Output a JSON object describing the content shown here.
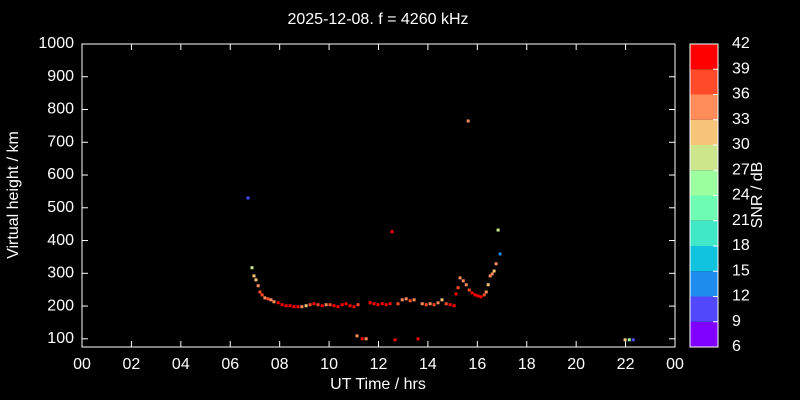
{
  "chart_data": {
    "type": "scatter",
    "title": "2025-12-08. f = 4260 kHz",
    "x_label": "UT Time / hrs",
    "y_label": "Virtual height / km",
    "xlim": [
      0,
      24
    ],
    "xticks": [
      {
        "value": 0,
        "label": "00"
      },
      {
        "value": 2,
        "label": "02"
      },
      {
        "value": 4,
        "label": "04"
      },
      {
        "value": 6,
        "label": "06"
      },
      {
        "value": 8,
        "label": "08"
      },
      10,
      12,
      14,
      16,
      18,
      20,
      22,
      {
        "value": 24,
        "label": "00"
      }
    ],
    "ylim": [
      75,
      1000
    ],
    "yticks": [
      100,
      200,
      300,
      400,
      500,
      600,
      700,
      800,
      900,
      1000
    ],
    "grid": false,
    "x": [
      6.72,
      6.88,
      6.96,
      7.04,
      7.13,
      7.2,
      7.29,
      7.4,
      7.53,
      7.65,
      7.77,
      7.94,
      8.1,
      8.26,
      8.42,
      8.58,
      8.74,
      8.9,
      9.07,
      9.23,
      9.39,
      9.55,
      9.72,
      9.88,
      10.04,
      10.2,
      10.36,
      10.53,
      10.69,
      10.85,
      11.01,
      11.17,
      11.13,
      11.34,
      11.5,
      11.66,
      11.82,
      11.98,
      12.15,
      12.31,
      12.47,
      12.55,
      12.67,
      12.79,
      12.96,
      13.12,
      13.28,
      13.44,
      13.6,
      13.77,
      13.93,
      14.09,
      14.25,
      14.41,
      14.57,
      14.74,
      14.9,
      15.06,
      15.14,
      15.22,
      15.3,
      15.43,
      15.55,
      15.63,
      15.67,
      15.79,
      15.91,
      16.03,
      16.15,
      16.28,
      16.36,
      16.44,
      16.52,
      16.6,
      16.68,
      16.76,
      16.84,
      16.92,
      21.98,
      22.15,
      22.31
    ],
    "y": [
      530,
      317,
      292,
      280,
      262,
      243,
      234,
      225,
      222,
      219,
      213,
      210,
      204,
      201,
      201,
      198,
      198,
      198,
      201,
      204,
      207,
      204,
      201,
      204,
      204,
      201,
      198,
      204,
      207,
      201,
      198,
      204,
      109,
      100,
      100,
      210,
      207,
      204,
      207,
      204,
      207,
      427,
      97,
      207,
      219,
      222,
      216,
      219,
      100,
      207,
      204,
      207,
      204,
      210,
      219,
      207,
      204,
      201,
      237,
      256,
      286,
      277,
      265,
      765,
      249,
      240,
      234,
      231,
      228,
      234,
      243,
      265,
      292,
      298,
      307,
      329,
      432,
      359,
      97,
      97,
      97
    ],
    "snr": [
      10,
      27,
      30,
      30,
      33,
      36,
      36,
      33,
      36,
      33,
      33,
      39,
      42,
      39,
      42,
      42,
      39,
      33,
      30,
      36,
      39,
      36,
      39,
      33,
      36,
      39,
      42,
      39,
      42,
      42,
      39,
      36,
      33,
      39,
      33,
      39,
      42,
      39,
      42,
      39,
      42,
      39,
      42,
      36,
      33,
      33,
      36,
      33,
      42,
      33,
      36,
      33,
      36,
      33,
      30,
      36,
      39,
      39,
      39,
      36,
      33,
      33,
      33,
      33,
      36,
      39,
      39,
      39,
      39,
      36,
      33,
      30,
      33,
      33,
      30,
      33,
      27,
      12,
      30,
      24,
      9
    ],
    "colorbar": {
      "label": "SNR / dB",
      "lim": [
        6,
        42
      ],
      "ticks": [
        6,
        9,
        12,
        15,
        18,
        21,
        24,
        27,
        30,
        33,
        36,
        39,
        42
      ],
      "colors": [
        "#8000ff",
        "#5148fc",
        "#1f8cf0",
        "#12c3e0",
        "#40e8c8",
        "#6efcb4",
        "#9cffa0",
        "#cde68c",
        "#f5c478",
        "#ff8c5a",
        "#ff4b2a",
        "#ff0000"
      ]
    }
  }
}
